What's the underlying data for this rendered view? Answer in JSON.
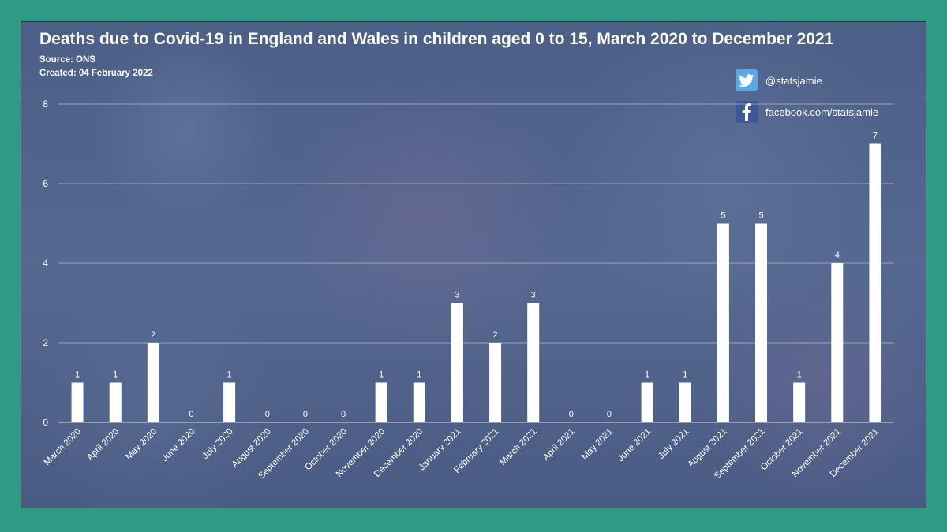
{
  "header": {
    "title": "Deaths due to Covid-19 in England and Wales in children aged 0 to 15, March 2020 to December 2021",
    "source": "Source: ONS",
    "created": "Created: 04 February 2022"
  },
  "social": {
    "twitter_handle": "@statsjamie",
    "facebook_handle": "facebook.com/statsjamie",
    "twitter_icon": "twitter-icon",
    "facebook_icon": "facebook-icon"
  },
  "colors": {
    "outer_background": "#2e9c85",
    "bar": "#ffffff",
    "twitter": "#5aa7e8",
    "facebook": "#3b5998"
  },
  "chart_data": {
    "type": "bar",
    "categories": [
      "March 2020",
      "April 2020",
      "May 2020",
      "June 2020",
      "July 2020",
      "August 2020",
      "September 2020",
      "October 2020",
      "November 2020",
      "December 2020",
      "January 2021",
      "February 2021",
      "March 2021",
      "April 2021",
      "May 2021",
      "June 2021",
      "July 2021",
      "August 2021",
      "September 2021",
      "October 2021",
      "November 2021",
      "December 2021"
    ],
    "values": [
      1,
      1,
      2,
      0,
      1,
      0,
      0,
      0,
      1,
      1,
      3,
      2,
      3,
      0,
      0,
      1,
      1,
      5,
      5,
      1,
      4,
      7
    ],
    "yticks": [
      0,
      2,
      4,
      6,
      8
    ],
    "ylim": [
      0,
      8
    ],
    "grid": true,
    "data_labels": true
  }
}
